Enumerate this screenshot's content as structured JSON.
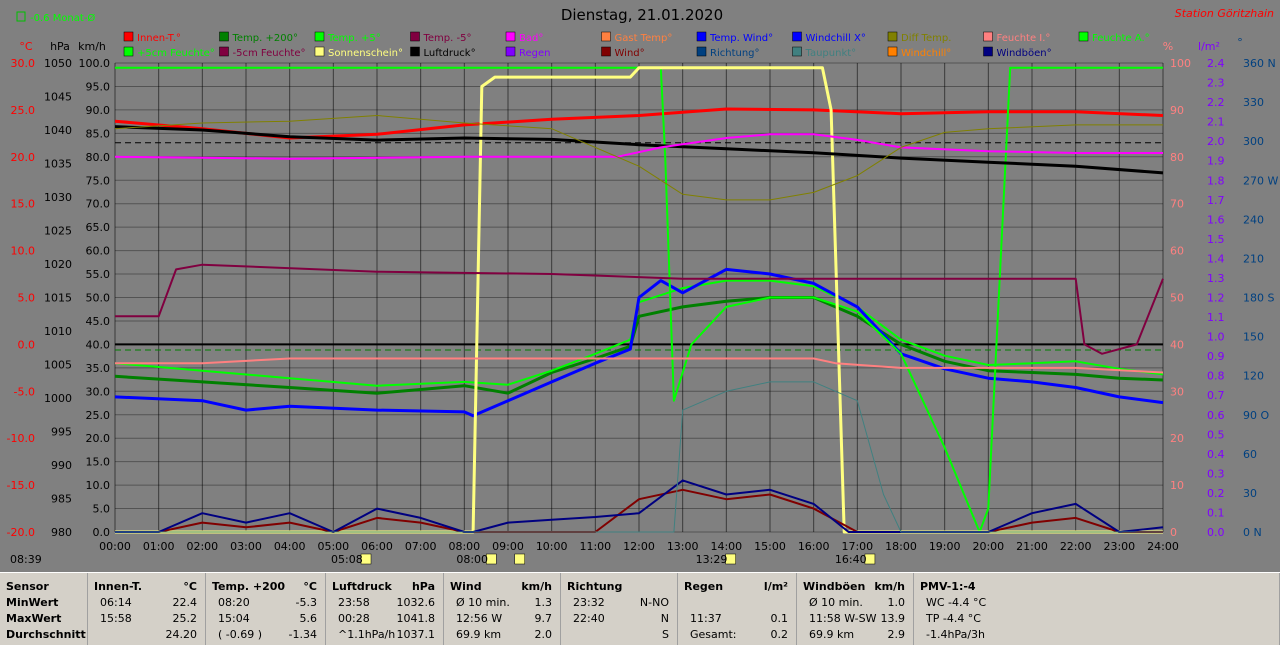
{
  "header": {
    "title": "Dienstag, 21.01.2020",
    "station": "Station Göritzhain",
    "month_indicator": "-0.6 Monat-Ø"
  },
  "legend": {
    "row1": [
      {
        "label": "Innen-T.°",
        "color": "#ff0000"
      },
      {
        "label": "Temp. +200°",
        "color": "#008000"
      },
      {
        "label": "Temp. +5°",
        "color": "#00ff00"
      },
      {
        "label": "Temp. -5°",
        "color": "#800040"
      },
      {
        "label": "Bad°",
        "color": "#ff00ff"
      },
      {
        "label": "Gast Temp°",
        "color": "#ff8040"
      },
      {
        "label": "Temp. Wind°",
        "color": "#0000ff"
      },
      {
        "label": "Windchill X°",
        "color": "#0000ff"
      },
      {
        "label": "Diff Temp.",
        "color": "#808000"
      },
      {
        "label": "Feuchte I.°",
        "color": "#ff8080"
      },
      {
        "label": "Feuchte A.°",
        "color": "#00ff00"
      }
    ],
    "row2": [
      {
        "label": "+5cm Feuchte°",
        "color": "#00ff00"
      },
      {
        "label": "-5cm Feuchte°",
        "color": "#800040"
      },
      {
        "label": "Sonnenschein°",
        "color": "#ffff80"
      },
      {
        "label": "Luftdruck°",
        "color": "#000000"
      },
      {
        "label": "Regen",
        "color": "#8000ff"
      },
      {
        "label": "Wind°",
        "color": "#800000"
      },
      {
        "label": "Richtung°",
        "color": "#004080"
      },
      {
        "label": "Taupunkt°",
        "color": "#408080"
      },
      {
        "label": "Windchill°",
        "color": "#ff8000"
      },
      {
        "label": "Windböen°",
        "color": "#000080"
      }
    ]
  },
  "axis_units": {
    "temp": "°C",
    "pressure": "hPa",
    "wind": "km/h",
    "percent": "%",
    "rain": "l/m²",
    "direction": "°"
  },
  "time_markers": [
    {
      "label": "08:39",
      "hour": 8.65
    },
    {
      "label": "05:08",
      "hour": 5.13
    },
    {
      "label": "08:00",
      "hour": 8.0
    },
    {
      "label": "13:29",
      "hour": 13.48
    },
    {
      "label": "16:40",
      "hour": 16.67
    }
  ],
  "chart_data": {
    "type": "line",
    "x_label_ticks": [
      "00:00",
      "01:00",
      "02:00",
      "03:00",
      "04:00",
      "05:00",
      "06:00",
      "07:00",
      "08:00",
      "09:00",
      "10:00",
      "11:00",
      "12:00",
      "13:00",
      "14:00",
      "15:00",
      "16:00",
      "17:00",
      "18:00",
      "19:00",
      "20:00",
      "21:00",
      "22:00",
      "23:00",
      "24:00"
    ],
    "xlim": [
      0,
      24
    ],
    "axes": {
      "temp": {
        "min": -20,
        "max": 30,
        "ticks": [
          "30.0",
          "25.0",
          "20.0",
          "15.0",
          "10.0",
          "5.0",
          "0.0",
          "-5.0",
          "-10.0",
          "-15.0",
          "-20.0"
        ]
      },
      "pressure": {
        "min": 980,
        "max": 1050,
        "ticks": [
          "1050",
          "1045",
          "1040",
          "1035",
          "1030",
          "1025",
          "1020",
          "1015",
          "1010",
          "1005",
          "1000",
          "995",
          "990",
          "985",
          "980"
        ]
      },
      "wind": {
        "min": 0,
        "max": 100,
        "ticks": [
          "100.0",
          "95.0",
          "90.0",
          "85.0",
          "80.0",
          "75.0",
          "70.0",
          "65.0",
          "60.0",
          "55.0",
          "50.0",
          "45.0",
          "40.0",
          "35.0",
          "30.0",
          "25.0",
          "20.0",
          "15.0",
          "10.0",
          "5.0",
          "0.0"
        ]
      },
      "percent": {
        "min": 0,
        "max": 100,
        "ticks": [
          "100",
          "90",
          "80",
          "70",
          "60",
          "50",
          "40",
          "30",
          "20",
          "10",
          "0"
        ]
      },
      "rain": {
        "min": 0,
        "max": 2.4,
        "ticks": [
          "2.4",
          "2.3",
          "2.2",
          "2.1",
          "2.0",
          "1.9",
          "1.8",
          "1.7",
          "1.6",
          "1.5",
          "1.4",
          "1.3",
          "1.2",
          "1.1",
          "1.0",
          "0.9",
          "0.8",
          "0.7",
          "0.6",
          "0.5",
          "0.4",
          "0.3",
          "0.2",
          "0.1",
          "0.0"
        ]
      },
      "direction": {
        "min": 0,
        "max": 360,
        "ticks": [
          "360 N",
          "330",
          "300",
          "270 W",
          "240",
          "210",
          "180 S",
          "150",
          "120",
          "90 O",
          "60",
          "30",
          "0 N"
        ]
      }
    },
    "series": [
      {
        "name": "Innen-T.°",
        "axis": "temp",
        "color": "#ff0000",
        "width": 3,
        "x": [
          0,
          2,
          4,
          6,
          8,
          10,
          12,
          14,
          16,
          18,
          20,
          22,
          24
        ],
        "y": [
          23.8,
          23.0,
          22.0,
          22.4,
          23.4,
          24.0,
          24.4,
          25.1,
          25.0,
          24.6,
          24.8,
          24.8,
          24.4
        ]
      },
      {
        "name": "Temp. +200°",
        "axis": "temp",
        "color": "#008000",
        "width": 3,
        "x": [
          0,
          2,
          4,
          6,
          8,
          9,
          10,
          11,
          11.8,
          12,
          13,
          14,
          15,
          16,
          17,
          18,
          19,
          20,
          21,
          22,
          23,
          24
        ],
        "y": [
          -3.4,
          -4.0,
          -4.6,
          -5.2,
          -4.4,
          -5.2,
          -3.0,
          -1.5,
          -0.2,
          3.0,
          4.0,
          4.6,
          5.0,
          5.0,
          3.0,
          0.0,
          -1.8,
          -2.8,
          -3.0,
          -3.2,
          -3.6,
          -3.8
        ]
      },
      {
        "name": "Temp. +5°",
        "axis": "temp",
        "color": "#00ff00",
        "width": 2,
        "x": [
          0,
          2,
          4,
          6,
          8,
          9,
          10,
          11,
          11.8,
          12,
          13,
          14,
          15,
          16,
          17,
          18,
          19,
          20,
          21,
          22,
          23,
          24
        ],
        "y": [
          -2.0,
          -2.8,
          -3.6,
          -4.4,
          -4.0,
          -4.3,
          -2.8,
          -1.0,
          0.5,
          4.5,
          6.0,
          6.8,
          6.8,
          6.2,
          4.0,
          0.5,
          -1.2,
          -2.2,
          -2.0,
          -1.8,
          -2.6,
          -3.2
        ]
      },
      {
        "name": "Temp. Wind°",
        "axis": "temp",
        "color": "#0000ff",
        "width": 3,
        "x": [
          0,
          2,
          3,
          4,
          6,
          8,
          8.2,
          9,
          10,
          11,
          11.8,
          12,
          12.5,
          13,
          14,
          15,
          16,
          17,
          17.8,
          18,
          19,
          20,
          21,
          22,
          23,
          24
        ],
        "y": [
          -5.6,
          -6.0,
          -7.0,
          -6.6,
          -7.0,
          -7.2,
          -7.6,
          -6.0,
          -4.0,
          -2.0,
          -0.5,
          5.0,
          6.8,
          5.5,
          8.0,
          7.5,
          6.5,
          4.0,
          0.0,
          -1.0,
          -2.6,
          -3.6,
          -4.0,
          -4.6,
          -5.6,
          -6.2
        ]
      },
      {
        "name": "Feuchte A.°",
        "axis": "percent",
        "color": "#00ff00",
        "width": 2,
        "x": [
          0,
          12.5,
          12.6,
          12.8,
          13.2,
          14,
          15,
          16,
          17,
          18,
          19,
          19.8,
          20,
          20.5,
          24
        ],
        "y": [
          99,
          99,
          80,
          28,
          40,
          48,
          50,
          50,
          47,
          38,
          18,
          0,
          5,
          99,
          99
        ]
      },
      {
        "name": "Sonnenschein°",
        "axis": "percent",
        "color": "#ffff80",
        "width": 3,
        "x": [
          0,
          8.2,
          8.4,
          8.7,
          11.5,
          11.8,
          12,
          12.2,
          16.2,
          16.4,
          16.7,
          24
        ],
        "y": [
          0,
          0,
          95,
          97,
          97,
          97,
          99,
          99,
          99,
          90,
          0,
          0
        ]
      },
      {
        "name": "Luftdruck°",
        "axis": "pressure",
        "color": "#000000",
        "width": 3,
        "x": [
          0,
          2,
          4,
          6,
          8,
          10,
          12,
          14,
          16,
          18,
          20,
          22,
          24
        ],
        "y": [
          1040.5,
          1040.0,
          1039.0,
          1038.5,
          1038.8,
          1038.6,
          1037.8,
          1037.2,
          1036.6,
          1035.8,
          1035.2,
          1034.6,
          1033.6
        ]
      },
      {
        "name": "Feuchte I.°",
        "axis": "percent",
        "color": "#ff8080",
        "width": 2,
        "x": [
          0,
          2,
          4,
          6,
          8,
          10,
          12,
          16,
          16.5,
          18,
          20,
          22,
          24
        ],
        "y": [
          36,
          36,
          37,
          37,
          37,
          37,
          37,
          37,
          36,
          35,
          35,
          35,
          34
        ]
      },
      {
        "name": "Bad°",
        "axis": "temp",
        "color": "#ff00ff",
        "width": 2,
        "x": [
          0,
          4,
          8,
          11.5,
          12.5,
          14,
          15,
          16,
          17,
          18,
          20,
          22,
          24
        ],
        "y": [
          20.0,
          19.8,
          20.0,
          20.0,
          21.0,
          22.0,
          22.4,
          22.4,
          21.8,
          21.0,
          20.6,
          20.4,
          20.4
        ]
      },
      {
        "name": "Diff Temp.",
        "axis": "temp",
        "color": "#808000",
        "width": 1,
        "x": [
          0,
          2,
          4,
          6,
          8,
          10,
          12,
          13,
          14,
          15,
          16,
          17,
          18,
          19,
          20,
          22,
          24
        ],
        "y": [
          23.0,
          23.6,
          23.8,
          24.4,
          23.6,
          23.0,
          19.0,
          16.0,
          15.4,
          15.4,
          16.2,
          18.0,
          21.0,
          22.6,
          23.0,
          23.4,
          23.4
        ]
      },
      {
        "name": "-5cm Feuchte°",
        "axis": "percent",
        "color": "#800040",
        "width": 2,
        "x": [
          0,
          1,
          1.4,
          2,
          6,
          10,
          13,
          14,
          18,
          20,
          21,
          22,
          22.2,
          22.6,
          23.4,
          24
        ],
        "y": [
          46,
          46,
          56,
          57,
          55.5,
          55,
          54,
          54,
          54,
          54,
          54,
          54,
          40,
          38,
          40,
          54
        ]
      },
      {
        "name": "Wind°",
        "axis": "wind",
        "color": "#800000",
        "width": 2,
        "x": [
          0,
          1,
          2,
          3,
          4,
          5,
          6,
          7,
          8,
          9,
          10,
          11,
          12,
          13,
          14,
          15,
          16,
          17,
          18,
          19,
          20,
          21,
          22,
          23,
          24
        ],
        "y": [
          0,
          0,
          2,
          1,
          2,
          0,
          3,
          2,
          0,
          0,
          0,
          0,
          7,
          9,
          7,
          8,
          5,
          0,
          0,
          0,
          0,
          2,
          3,
          0,
          0
        ]
      },
      {
        "name": "Windböen°",
        "axis": "wind",
        "color": "#000080",
        "width": 2,
        "x": [
          0,
          1,
          2,
          3,
          4,
          5,
          6,
          7,
          8,
          8.2,
          9,
          10,
          11,
          12,
          13,
          14,
          15,
          16,
          16.8,
          17,
          18,
          19,
          20,
          21,
          22,
          23,
          24
        ],
        "y": [
          0,
          0,
          4,
          2,
          4,
          0,
          5,
          3,
          0,
          0,
          2,
          2.6,
          3.2,
          4,
          11,
          8,
          9,
          6,
          0,
          0,
          0,
          0,
          0,
          4,
          6,
          0,
          1
        ]
      },
      {
        "name": "Taupunkt°",
        "axis": "percent",
        "color": "#408080",
        "width": 1,
        "x": [
          0,
          12.6,
          12.8,
          13,
          14,
          15,
          16,
          17,
          17.6,
          18,
          24
        ],
        "y": [
          0,
          0,
          0,
          26,
          30,
          32,
          32,
          28,
          8,
          0,
          0
        ]
      }
    ]
  },
  "footer": {
    "columns": [
      {
        "title": "Sensor",
        "unit": "",
        "rows": [
          [
            "MinWert",
            ""
          ],
          [
            "MaxWert",
            ""
          ],
          [
            "Durchschnitt",
            ""
          ]
        ]
      },
      {
        "title": "Innen-T.",
        "unit": "°C",
        "rows": [
          [
            "06:14",
            "22.4"
          ],
          [
            "15:58",
            "25.2"
          ],
          [
            "",
            "24.20"
          ]
        ]
      },
      {
        "title": "Temp. +200",
        "unit": "°C",
        "rows": [
          [
            "08:20",
            "-5.3"
          ],
          [
            "15:04",
            "5.6"
          ],
          [
            "( -0.69 )",
            "-1.34"
          ]
        ]
      },
      {
        "title": "Luftdruck",
        "unit": "hPa",
        "rows": [
          [
            "23:58",
            "1032.6"
          ],
          [
            "00:28",
            "1041.8"
          ],
          [
            "^1.1hPa/h",
            "1037.1"
          ]
        ]
      },
      {
        "title": "Wind",
        "unit": "km/h",
        "rows": [
          [
            "Ø 10 min.",
            "1.3"
          ],
          [
            "12:56   W",
            "9.7"
          ],
          [
            "69.9 km",
            "2.0"
          ]
        ]
      },
      {
        "title": "Richtung",
        "unit": "",
        "rows": [
          [
            "23:32",
            "N-NO"
          ],
          [
            "22:40",
            "N"
          ],
          [
            "",
            "S"
          ]
        ]
      },
      {
        "title": "Regen",
        "unit": "l/m²",
        "rows": [
          [
            "",
            ""
          ],
          [
            "11:37",
            "0.1"
          ],
          [
            "Gesamt:",
            "0.2"
          ]
        ]
      },
      {
        "title": "Windböen",
        "unit": "km/h",
        "rows": [
          [
            "Ø 10 min.",
            "1.0"
          ],
          [
            "11:58   W-SW",
            "13.9"
          ],
          [
            "69.9 km",
            "2.9"
          ]
        ]
      },
      {
        "title": "PMV-1:-4",
        "unit": "",
        "rows": [
          [
            "WC -4.4 °C",
            ""
          ],
          [
            "TP -4.4 °C",
            ""
          ],
          [
            "-1.4hPa/3h",
            ""
          ]
        ]
      }
    ]
  }
}
